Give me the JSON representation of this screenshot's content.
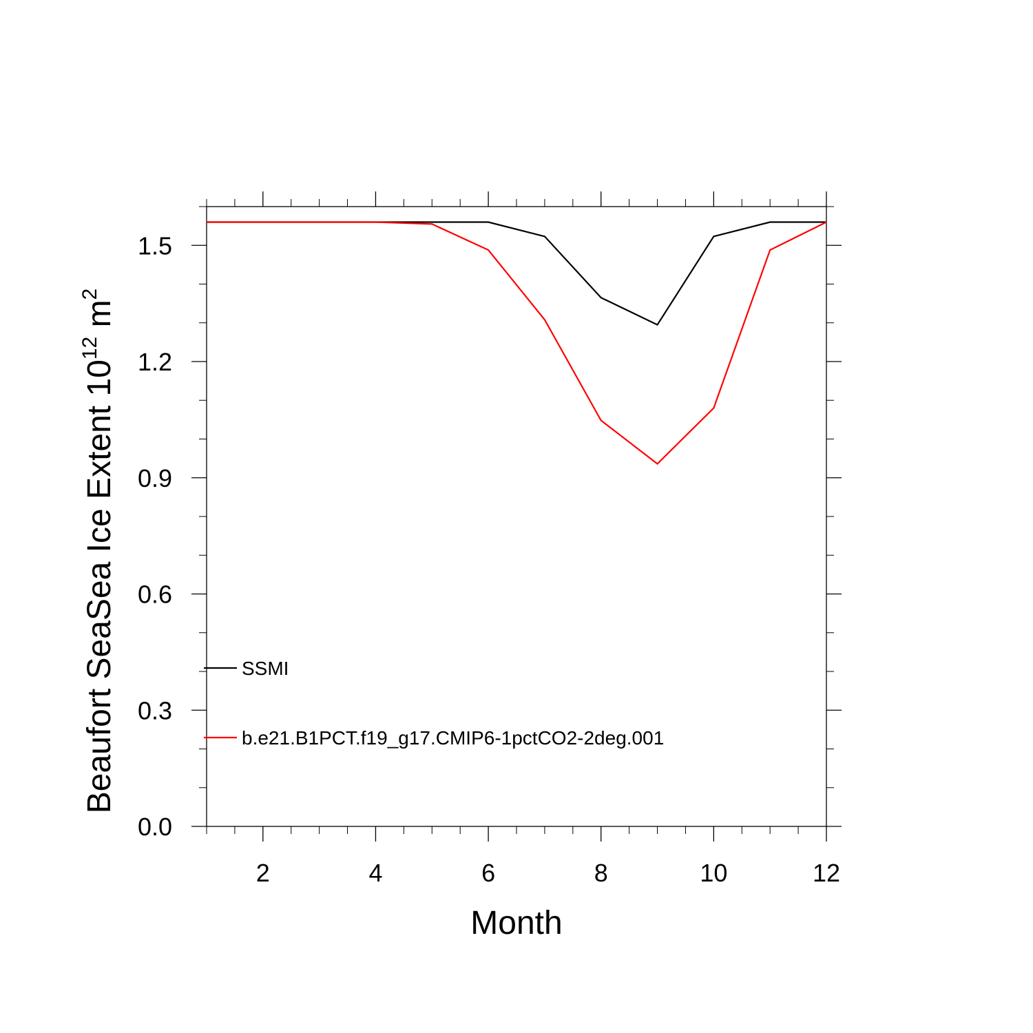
{
  "chart_data": {
    "type": "line",
    "title": "",
    "xlabel": "Month",
    "ylabel_main": "Beaufort SeaSea Ice Extent 10",
    "ylabel_exponent": "12",
    "ylabel_unit": " m",
    "ylabel_unit_exponent": "2",
    "xlim": [
      1,
      12
    ],
    "ylim": [
      0.0,
      1.6
    ],
    "x_ticks": [
      2,
      4,
      6,
      8,
      10,
      12
    ],
    "x_tick_labels": [
      "2",
      "4",
      "6",
      "8",
      "10",
      "12"
    ],
    "y_ticks": [
      0.0,
      0.3,
      0.6,
      0.9,
      1.2,
      1.5
    ],
    "y_tick_labels": [
      "0.0",
      "0.3",
      "0.6",
      "0.9",
      "1.2",
      "1.5"
    ],
    "grid": false,
    "legend_position": "bottom-left",
    "x": [
      1,
      2,
      3,
      4,
      5,
      6,
      7,
      8,
      9,
      10,
      11,
      12
    ],
    "series": [
      {
        "name": "SSMI",
        "color": "#000000",
        "values": [
          1.56,
          1.56,
          1.56,
          1.56,
          1.56,
          1.56,
          1.523,
          1.365,
          1.295,
          1.523,
          1.56,
          1.56
        ]
      },
      {
        "name": "b.e21.B1PCT.f19_g17.CMIP6-1pctCO2-2deg.001",
        "color": "#ff0000",
        "values": [
          1.56,
          1.56,
          1.56,
          1.56,
          1.555,
          1.488,
          1.308,
          1.048,
          0.936,
          1.08,
          1.488,
          1.56
        ]
      }
    ]
  }
}
